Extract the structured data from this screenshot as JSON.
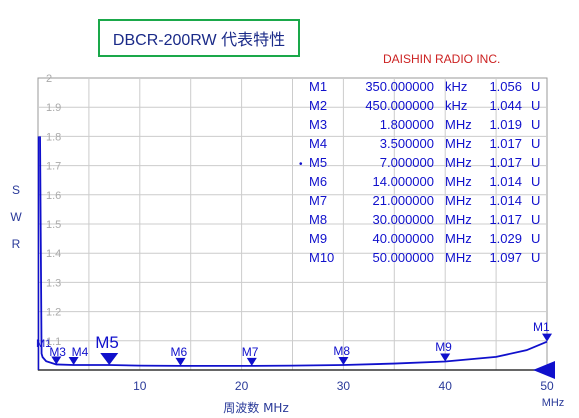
{
  "title": "DBCR-200RW 代表特性",
  "brand": "DAISHIN RADIO INC.",
  "colors": {
    "title_border": "#1aa84a",
    "brand": "#cc2222",
    "plot": "#1010cc",
    "grid": "#cccccc"
  },
  "chart_data": {
    "type": "line",
    "title": "DBCR-200RW 代表特性",
    "xlabel": "周波数 MHz",
    "ylabel": "S W R",
    "xlim": [
      0,
      50
    ],
    "ylim": [
      1,
      2
    ],
    "x_ticks": [
      10,
      20,
      30,
      40,
      50
    ],
    "x_axis_unit": "MHz",
    "y_ticks": [
      "1.1",
      "1.2",
      "1.3",
      "1.4",
      "1.5",
      "1.6",
      "1.7",
      "1.8",
      "1.9",
      "2"
    ],
    "grid": true,
    "series": [
      {
        "x": [
          0.2,
          0.35,
          0.45,
          0.8,
          1.8,
          3.5,
          5,
          7,
          10,
          14,
          18,
          21,
          25,
          30,
          35,
          40,
          45,
          48,
          50
        ],
        "y": [
          1.8,
          1.056,
          1.044,
          1.03,
          1.019,
          1.017,
          1.017,
          1.017,
          1.015,
          1.014,
          1.014,
          1.014,
          1.015,
          1.017,
          1.022,
          1.029,
          1.045,
          1.068,
          1.097
        ]
      }
    ],
    "markers": [
      {
        "label": "M1",
        "freq": "350.000000",
        "unit": "kHz",
        "swr": "1.056",
        "swr_unit": "U",
        "x": 0.35,
        "y": 1.056,
        "active": false
      },
      {
        "label": "M2",
        "freq": "450.000000",
        "unit": "kHz",
        "swr": "1.044",
        "swr_unit": "U",
        "x": 0.45,
        "y": 1.044,
        "active": false
      },
      {
        "label": "M3",
        "freq": "1.800000",
        "unit": "MHz",
        "swr": "1.019",
        "swr_unit": "U",
        "x": 1.8,
        "y": 1.019,
        "active": false
      },
      {
        "label": "M4",
        "freq": "3.500000",
        "unit": "MHz",
        "swr": "1.017",
        "swr_unit": "U",
        "x": 3.5,
        "y": 1.017,
        "active": false
      },
      {
        "label": "M5",
        "freq": "7.000000",
        "unit": "MHz",
        "swr": "1.017",
        "swr_unit": "U",
        "x": 7.0,
        "y": 1.017,
        "active": true
      },
      {
        "label": "M6",
        "freq": "14.000000",
        "unit": "MHz",
        "swr": "1.014",
        "swr_unit": "U",
        "x": 14.0,
        "y": 1.014,
        "active": false
      },
      {
        "label": "M7",
        "freq": "21.000000",
        "unit": "MHz",
        "swr": "1.014",
        "swr_unit": "U",
        "x": 21.0,
        "y": 1.014,
        "active": false
      },
      {
        "label": "M8",
        "freq": "30.000000",
        "unit": "MHz",
        "swr": "1.017",
        "swr_unit": "U",
        "x": 30.0,
        "y": 1.017,
        "active": false
      },
      {
        "label": "M9",
        "freq": "40.000000",
        "unit": "MHz",
        "swr": "1.029",
        "swr_unit": "U",
        "x": 40.0,
        "y": 1.029,
        "active": false
      },
      {
        "label": "M10",
        "freq": "50.000000",
        "unit": "MHz",
        "swr": "1.097",
        "swr_unit": "U",
        "x": 50.0,
        "y": 1.097,
        "active": false
      }
    ],
    "plot_marker_labels": [
      "M1",
      "M3",
      "M4",
      "M5",
      "M6",
      "M7",
      "M8",
      "M9",
      "M1"
    ]
  }
}
